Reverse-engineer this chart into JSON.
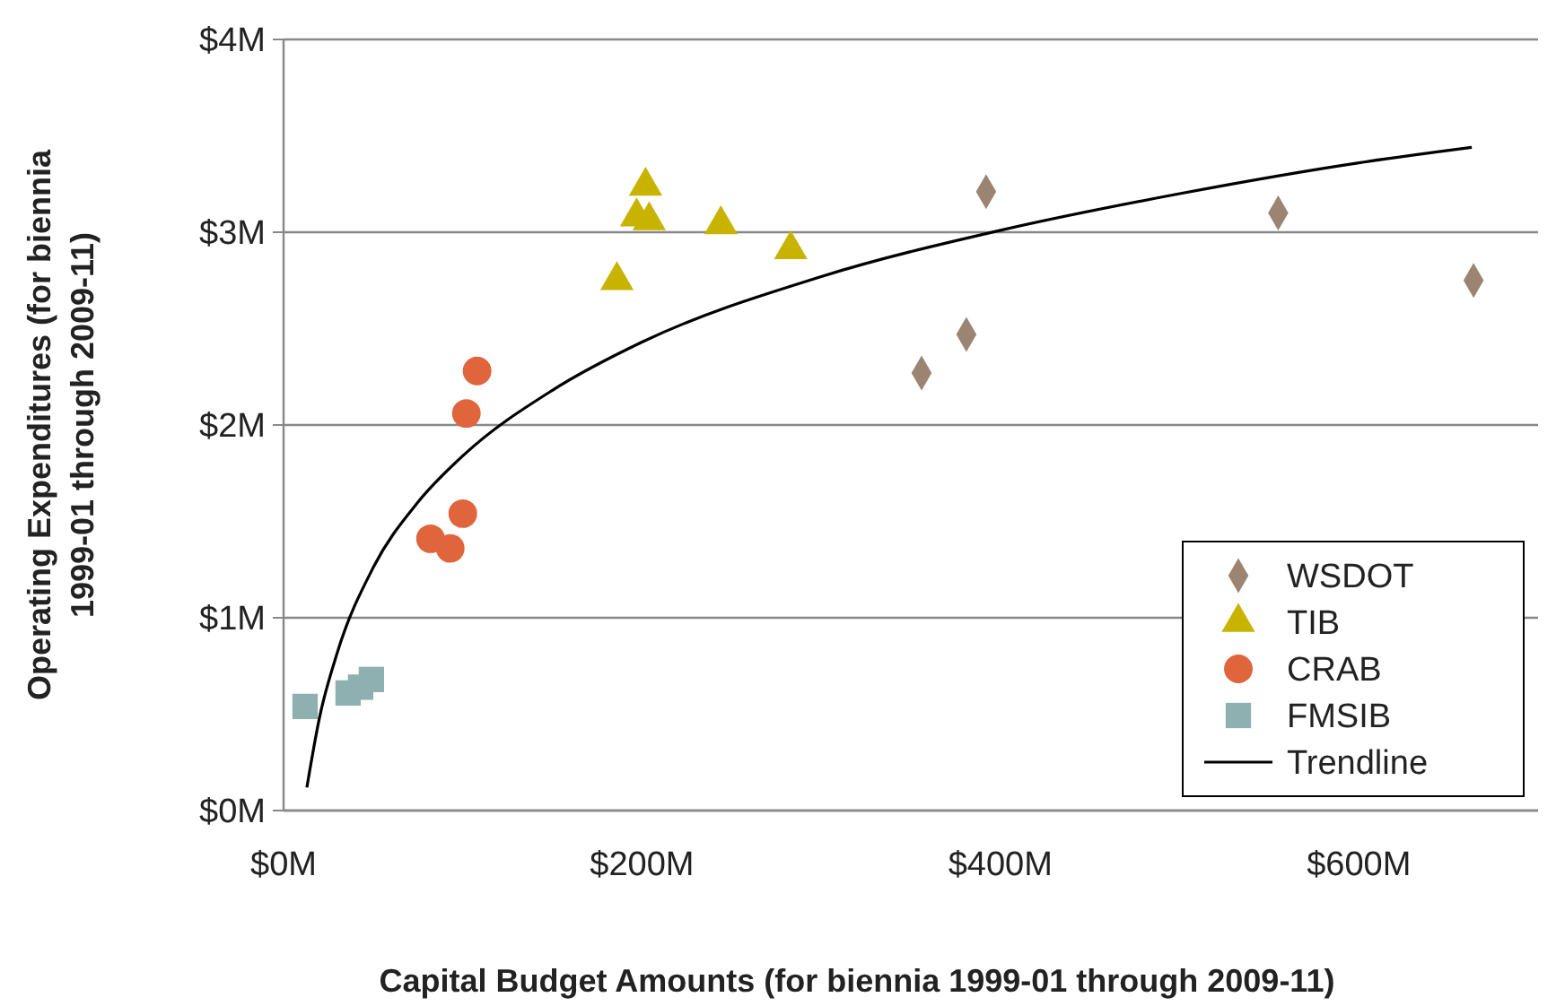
{
  "chart_data": {
    "type": "scatter",
    "xlabel": "Capital Budget Amounts (for biennia 1999-01 through 2009-11)",
    "ylabel": "Operating Expenditures (for biennia\n1999-01 through 2009-11)",
    "xlim": [
      0,
      700
    ],
    "xticks": [
      {
        "value": 0,
        "label": "$0M"
      },
      {
        "value": 200,
        "label": "$200M"
      },
      {
        "value": 400,
        "label": "$400M"
      },
      {
        "value": 600,
        "label": "$600M"
      }
    ],
    "ylim": [
      0,
      4
    ],
    "yticks": [
      {
        "value": 0,
        "label": "$0M"
      },
      {
        "value": 1,
        "label": "$1M"
      },
      {
        "value": 2,
        "label": "$2M"
      },
      {
        "value": 3,
        "label": "$3M"
      },
      {
        "value": 4,
        "label": "$4M"
      }
    ],
    "grid": "y",
    "legend": "bottom right",
    "series": [
      {
        "name": "WSDOT",
        "color": "#9c8472",
        "marker": "diamond",
        "x": [
          356,
          381,
          392,
          555,
          664
        ],
        "values": [
          2.27,
          2.47,
          3.21,
          3.1,
          2.75
        ]
      },
      {
        "name": "TIB",
        "color": "#c8b400",
        "marker": "triangle",
        "x": [
          186,
          197,
          202,
          204,
          244,
          283
        ],
        "values": [
          2.75,
          3.08,
          3.24,
          3.06,
          3.04,
          2.91
        ]
      },
      {
        "name": "CRAB",
        "color": "#e0643c",
        "marker": "circle",
        "x": [
          108,
          102,
          100,
          93,
          82
        ],
        "values": [
          2.28,
          2.06,
          1.54,
          1.36,
          1.41
        ]
      },
      {
        "name": "FMSIB",
        "color": "#8fb0b0",
        "marker": "square",
        "x": [
          12,
          36,
          43,
          49
        ],
        "values": [
          0.54,
          0.61,
          0.64,
          0.68
        ]
      },
      {
        "name": "Trendline",
        "type": "line",
        "color": "#000000",
        "marker": "none",
        "x": [
          13,
          20,
          30,
          50,
          75,
          100,
          150,
          200,
          300,
          400,
          500,
          600,
          663
        ],
        "values": [
          0.12,
          0.48,
          0.82,
          1.26,
          1.6,
          1.84,
          2.18,
          2.43,
          2.77,
          3.01,
          3.2,
          3.36,
          3.44
        ]
      }
    ]
  }
}
